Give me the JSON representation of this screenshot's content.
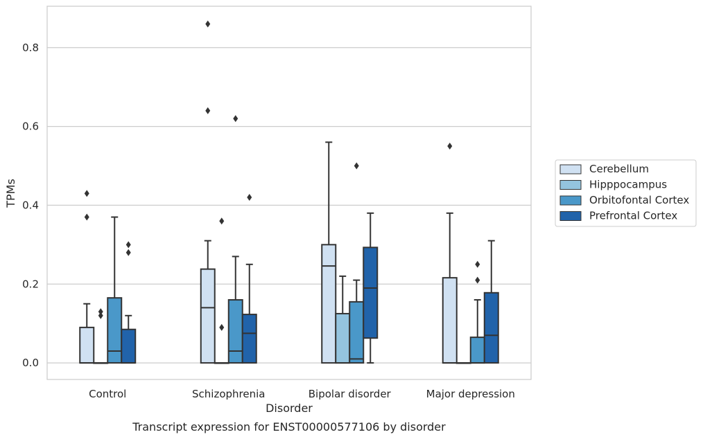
{
  "chart_data": {
    "type": "box",
    "title": "",
    "caption": "Transcript expression for ENST00000577106 by disorder",
    "xlabel": "Disorder",
    "ylabel": "TPMs",
    "ylim": [
      -0.042,
      0.905
    ],
    "yticks": [
      0.0,
      0.2,
      0.4,
      0.6,
      0.8
    ],
    "ytick_labels": [
      "0.0",
      "0.2",
      "0.4",
      "0.6",
      "0.8"
    ],
    "grid": "horizontal",
    "legend_position": "right",
    "categories": [
      "Control",
      "Schizophrenia",
      "Bipolar disorder",
      "Major depression"
    ],
    "series": [
      {
        "name": "Cerebellum",
        "color": "#d0e1f2",
        "boxes": [
          {
            "q1": 0.0,
            "median": 0.0,
            "q3": 0.09,
            "whisker_low": 0.0,
            "whisker_high": 0.15,
            "outliers": [
              0.37,
              0.43
            ]
          },
          {
            "q1": 0.0,
            "median": 0.14,
            "q3": 0.238,
            "whisker_low": 0.0,
            "whisker_high": 0.31,
            "outliers": [
              0.64,
              0.86
            ]
          },
          {
            "q1": 0.0,
            "median": 0.246,
            "q3": 0.3,
            "whisker_low": 0.0,
            "whisker_high": 0.56,
            "outliers": []
          },
          {
            "q1": 0.0,
            "median": 0.0,
            "q3": 0.216,
            "whisker_low": 0.0,
            "whisker_high": 0.38,
            "outliers": [
              0.55
            ]
          }
        ]
      },
      {
        "name": "Hipppocampus",
        "color": "#94c4df",
        "boxes": [
          {
            "q1": 0.0,
            "median": 0.0,
            "q3": 0.0,
            "whisker_low": 0.0,
            "whisker_high": 0.0,
            "outliers": [
              0.12,
              0.13
            ]
          },
          {
            "q1": 0.0,
            "median": 0.0,
            "q3": 0.0,
            "whisker_low": 0.0,
            "whisker_high": 0.0,
            "outliers": [
              0.09,
              0.36
            ]
          },
          {
            "q1": 0.0,
            "median": 0.0,
            "q3": 0.125,
            "whisker_low": 0.0,
            "whisker_high": 0.22,
            "outliers": []
          },
          {
            "q1": 0.0,
            "median": 0.0,
            "q3": 0.0,
            "whisker_low": 0.0,
            "whisker_high": 0.0,
            "outliers": []
          }
        ]
      },
      {
        "name": "Orbitofontal Cortex",
        "color": "#4a98c9",
        "boxes": [
          {
            "q1": 0.0,
            "median": 0.03,
            "q3": 0.165,
            "whisker_low": 0.0,
            "whisker_high": 0.37,
            "outliers": []
          },
          {
            "q1": 0.0,
            "median": 0.03,
            "q3": 0.16,
            "whisker_low": 0.0,
            "whisker_high": 0.27,
            "outliers": [
              0.62
            ]
          },
          {
            "q1": 0.0,
            "median": 0.01,
            "q3": 0.155,
            "whisker_low": 0.0,
            "whisker_high": 0.21,
            "outliers": [
              0.5
            ]
          },
          {
            "q1": 0.0,
            "median": 0.0,
            "q3": 0.065,
            "whisker_low": 0.0,
            "whisker_high": 0.16,
            "outliers": [
              0.21,
              0.25
            ]
          }
        ]
      },
      {
        "name": "Prefrontal Cortex",
        "color": "#2163aa",
        "boxes": [
          {
            "q1": 0.0,
            "median": 0.0,
            "q3": 0.085,
            "whisker_low": 0.0,
            "whisker_high": 0.12,
            "outliers": [
              0.28,
              0.3
            ]
          },
          {
            "q1": 0.0,
            "median": 0.075,
            "q3": 0.123,
            "whisker_low": 0.0,
            "whisker_high": 0.25,
            "outliers": [
              0.42
            ]
          },
          {
            "q1": 0.063,
            "median": 0.19,
            "q3": 0.293,
            "whisker_low": 0.0,
            "whisker_high": 0.38,
            "outliers": []
          },
          {
            "q1": 0.0,
            "median": 0.07,
            "q3": 0.178,
            "whisker_low": 0.0,
            "whisker_high": 0.31,
            "outliers": []
          }
        ]
      }
    ]
  }
}
